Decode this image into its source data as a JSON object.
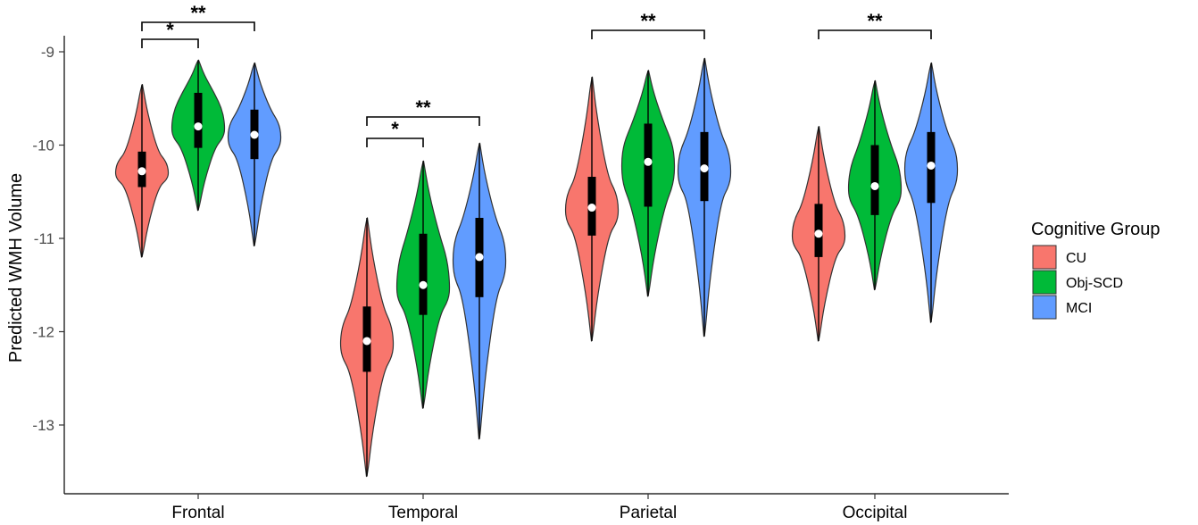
{
  "chart_data": {
    "type": "violin",
    "ylabel": "Predicted WMH Volume",
    "ylim": [
      -13.75,
      -8.8
    ],
    "yticks": [
      -9,
      -10,
      -11,
      -12,
      -13
    ],
    "categories": [
      "Frontal",
      "Temporal",
      "Parietal",
      "Occipital"
    ],
    "legend": {
      "title": "Cognitive Group",
      "placement": "right"
    },
    "series": [
      {
        "name": "CU",
        "color": "#F8766D",
        "stats": [
          {
            "min": -11.2,
            "q1": -10.45,
            "median": -10.28,
            "q3": -10.07,
            "max": -9.35
          },
          {
            "min": -13.55,
            "q1": -12.43,
            "median": -12.1,
            "q3": -11.73,
            "max": -10.78
          },
          {
            "min": -12.1,
            "q1": -10.97,
            "median": -10.67,
            "q3": -10.34,
            "max": -9.27
          },
          {
            "min": -12.1,
            "q1": -11.2,
            "median": -10.95,
            "q3": -10.63,
            "max": -9.8
          }
        ]
      },
      {
        "name": "Obj-SCD",
        "color": "#00BA38",
        "stats": [
          {
            "min": -10.7,
            "q1": -10.03,
            "median": -9.8,
            "q3": -9.44,
            "max": -9.09
          },
          {
            "min": -12.82,
            "q1": -11.82,
            "median": -11.5,
            "q3": -10.95,
            "max": -10.17
          },
          {
            "min": -11.62,
            "q1": -10.66,
            "median": -10.18,
            "q3": -9.77,
            "max": -9.2
          },
          {
            "min": -11.55,
            "q1": -10.75,
            "median": -10.44,
            "q3": -10.0,
            "max": -9.31
          }
        ]
      },
      {
        "name": "MCI",
        "color": "#619CFF",
        "stats": [
          {
            "min": -11.08,
            "q1": -10.15,
            "median": -9.89,
            "q3": -9.62,
            "max": -9.12
          },
          {
            "min": -13.15,
            "q1": -11.63,
            "median": -11.2,
            "q3": -10.78,
            "max": -9.98
          },
          {
            "min": -12.05,
            "q1": -10.6,
            "median": -10.25,
            "q3": -9.86,
            "max": -9.07
          },
          {
            "min": -11.9,
            "q1": -10.62,
            "median": -10.22,
            "q3": -9.86,
            "max": -9.12
          }
        ]
      }
    ],
    "annotations": [
      {
        "category": "Frontal",
        "from": "CU",
        "to": "Obj-SCD",
        "label": "*",
        "level": 1
      },
      {
        "category": "Frontal",
        "from": "CU",
        "to": "MCI",
        "label": "**",
        "level": 2
      },
      {
        "category": "Temporal",
        "from": "CU",
        "to": "Obj-SCD",
        "label": "*",
        "level": 1
      },
      {
        "category": "Temporal",
        "from": "CU",
        "to": "MCI",
        "label": "**",
        "level": 2
      },
      {
        "category": "Parietal",
        "from": "CU",
        "to": "MCI",
        "label": "**",
        "level": 1
      },
      {
        "category": "Occipital",
        "from": "CU",
        "to": "MCI",
        "label": "**",
        "level": 1
      }
    ]
  }
}
